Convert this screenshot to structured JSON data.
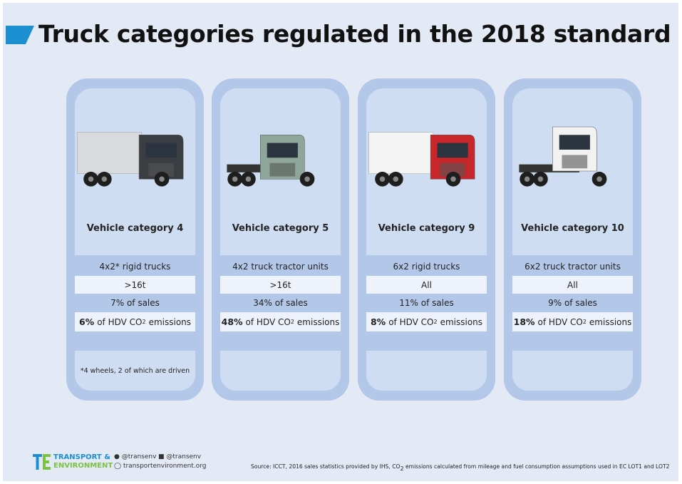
{
  "title": "Truck categories regulated in the 2018 standard",
  "cards": [
    {
      "category": "Vehicle category 4",
      "axles": "4x2* rigid trucks",
      "weight": ">16t",
      "sales": "7% of sales",
      "emissions": {
        "share": "6%",
        "text": "of HDV CO",
        "sub": "2",
        "end": "emissions"
      },
      "note": "*4 wheels, 2 of which are driven"
    },
    {
      "category": "Vehicle category 5",
      "axles": "4x2 truck tractor units",
      "weight": ">16t",
      "sales": "34% of sales",
      "emissions": {
        "share": "48%",
        "text": "of HDV CO",
        "sub": "2",
        "end": "emissions"
      }
    },
    {
      "category": "Vehicle category 9",
      "axles": "6x2 rigid trucks",
      "weight": "All",
      "sales": "11% of sales",
      "emissions": {
        "share": "8%",
        "text": "of HDV CO",
        "sub": "2",
        "end": "emissions"
      }
    },
    {
      "category": "Vehicle category 10",
      "axles": "6x2 truck tractor units",
      "weight": "All",
      "sales": "9% of sales",
      "emissions": {
        "share": "18%",
        "text": "of HDV CO",
        "sub": "2",
        "end": "emissions"
      }
    }
  ],
  "footer": {
    "brand": [
      "TRANSPORT &",
      "ENVIRONMENT"
    ],
    "twitter": "@transenv",
    "facebook": "@transenv",
    "website": "transportenvironment.org",
    "source": {
      "text": "Source: ICCT, 2016 sales statistics provided by IHS, CO",
      "sub": "2",
      "end": "emissions calculated from mileage and fuel consumption assumptions used in EC LOT1 and LOT2"
    }
  }
}
